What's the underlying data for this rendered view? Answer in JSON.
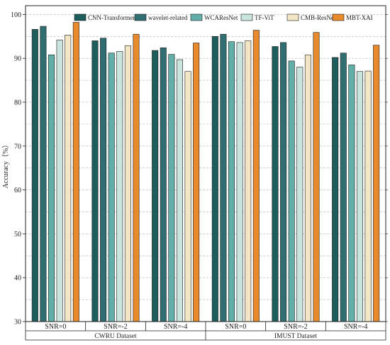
{
  "chart_data": {
    "type": "bar",
    "ylabel": "Accuracy（%）",
    "ylim": [
      30,
      102
    ],
    "yticks": [
      30,
      40,
      50,
      60,
      70,
      80,
      90,
      100
    ],
    "grid": "horizontal dashed",
    "legend_position": "top",
    "series": [
      {
        "name": "CNN-Transformer",
        "color": "#1d5d5b",
        "values": [
          96.6,
          94.0,
          91.8,
          95.0,
          92.7,
          90.2
        ]
      },
      {
        "name": "wavelet-related",
        "color": "#316e72",
        "values": [
          97.3,
          94.6,
          92.4,
          95.5,
          93.6,
          91.2
        ]
      },
      {
        "name": "WCAResNet",
        "color": "#62aea8",
        "values": [
          90.8,
          91.2,
          90.9,
          93.8,
          89.4,
          88.5
        ]
      },
      {
        "name": "TF-ViT",
        "color": "#c9e3dd",
        "values": [
          94.2,
          91.6,
          89.7,
          93.6,
          88.0,
          87.0
        ]
      },
      {
        "name": "CMB-ResNet",
        "color": "#f2e6c6",
        "values": [
          95.3,
          92.9,
          87.0,
          94.0,
          90.8,
          87.1
        ]
      },
      {
        "name": "MBT-XAI",
        "color": "#e8892b",
        "values": [
          98.2,
          95.5,
          93.5,
          96.4,
          95.9,
          93.0
        ]
      }
    ],
    "categories": [
      "SNR=0",
      "SNR=-2",
      "SNR=-4",
      "SNR=0",
      "SNR=-2",
      "SNR=-4"
    ],
    "groups": [
      {
        "label": "CWRU Dataset",
        "span": 3
      },
      {
        "label": "IMUST Dataset",
        "span": 3
      }
    ]
  }
}
